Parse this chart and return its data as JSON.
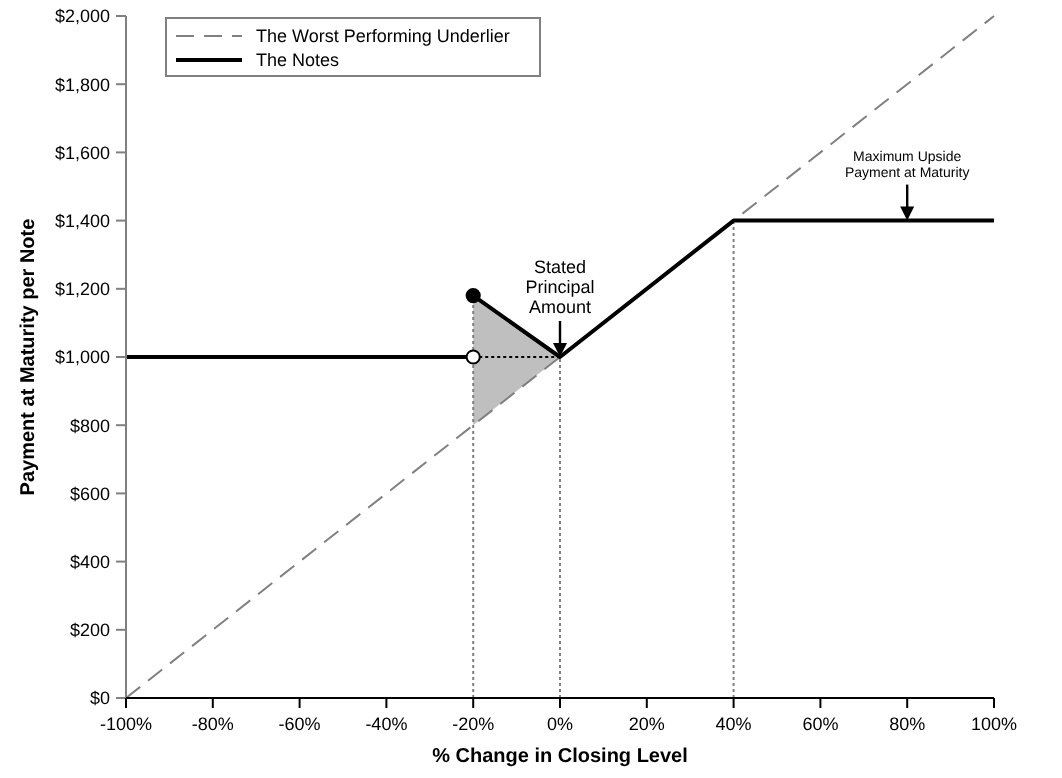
{
  "chart_data": {
    "type": "line",
    "xlabel": "% Change in Closing Level",
    "ylabel": "Payment at Maturity per Note",
    "xlim": [
      -100,
      100
    ],
    "ylim": [
      0,
      2000
    ],
    "xticks": [
      {
        "value": -100,
        "label": "-100%"
      },
      {
        "value": -80,
        "label": "-80%"
      },
      {
        "value": -60,
        "label": "-60%"
      },
      {
        "value": -40,
        "label": "-40%"
      },
      {
        "value": -20,
        "label": "-20%"
      },
      {
        "value": 0,
        "label": "0%"
      },
      {
        "value": 20,
        "label": "20%"
      },
      {
        "value": 40,
        "label": "40%"
      },
      {
        "value": 60,
        "label": "60%"
      },
      {
        "value": 80,
        "label": "80%"
      },
      {
        "value": 100,
        "label": "100%"
      }
    ],
    "yticks": [
      {
        "value": 0,
        "label": "$0"
      },
      {
        "value": 200,
        "label": "$200"
      },
      {
        "value": 400,
        "label": "$400"
      },
      {
        "value": 600,
        "label": "$600"
      },
      {
        "value": 800,
        "label": "$800"
      },
      {
        "value": 1000,
        "label": "$1,000"
      },
      {
        "value": 1200,
        "label": "$1,200"
      },
      {
        "value": 1400,
        "label": "$1,400"
      },
      {
        "value": 1600,
        "label": "$1,600"
      },
      {
        "value": 1800,
        "label": "$1,800"
      },
      {
        "value": 2000,
        "label": "$2,000"
      }
    ],
    "legend": "top left",
    "grid": false,
    "series": [
      {
        "line_style": "dotted",
        "color": "#808080",
        "x": [
          -20,
          -20
        ],
        "values": [
          0,
          1180
        ]
      },
      {
        "line_style": "dotted",
        "color": "#808080",
        "x": [
          0,
          0
        ],
        "values": [
          0,
          1000
        ]
      },
      {
        "line_style": "dotted",
        "color": "#808080",
        "x": [
          40,
          40
        ],
        "values": [
          0,
          1400
        ]
      },
      {
        "line_style": "dotted",
        "color": "#000000",
        "x": [
          -20,
          0
        ],
        "values": [
          1000,
          1000
        ]
      },
      {
        "name": "The Worst Performing Underlier",
        "line_style": "dashed",
        "color": "#808080",
        "x": [
          -100,
          100
        ],
        "values": [
          0,
          2000
        ]
      },
      {
        "line_style": "solid",
        "color": "#000000",
        "x": [
          -100,
          -20
        ],
        "values": [
          1000,
          1000
        ]
      },
      {
        "name": "The Notes",
        "line_style": "solid",
        "color": "#000000",
        "x": [
          -20,
          0,
          40,
          100
        ],
        "values": [
          1180,
          1000,
          1400,
          1400
        ],
        "lower": [
          800,
          1000,
          null,
          null
        ],
        "upper": [
          1180,
          1000,
          null,
          null
        ]
      },
      {
        "type": "scatter",
        "marker": "circle",
        "color": "#000000",
        "x": [
          -20
        ],
        "values": [
          1180
        ]
      },
      {
        "type": "scatter",
        "marker": "circle",
        "color": "#ffffff",
        "x": [
          -20
        ],
        "values": [
          1000
        ]
      }
    ],
    "annotations": [
      {
        "text": "Stated\nPrincipal\nAmount",
        "x": 0,
        "y": 1000
      },
      {
        "text": "Maximum Upside\nPayment at Maturity",
        "x": 80,
        "y": 1400
      }
    ]
  }
}
